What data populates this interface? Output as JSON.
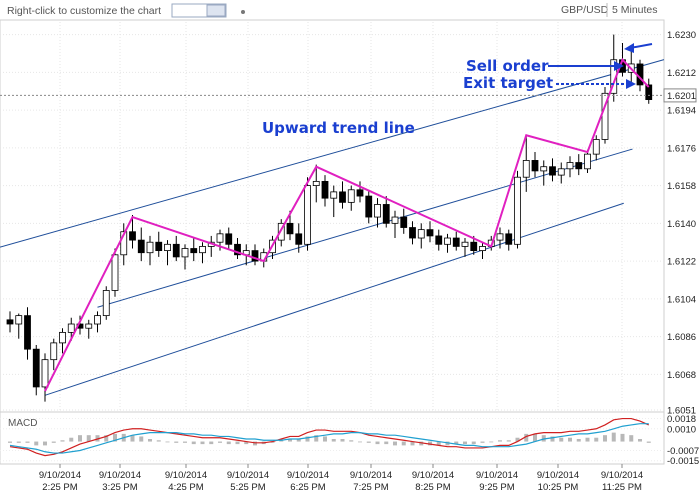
{
  "toolbar": {
    "customize_hint": "Right-click to customize the chart",
    "settings_icon": "gear-icon",
    "symbol": "GBP/USD",
    "timeframe": "5 Minutes"
  },
  "annotations": {
    "trend_line_label": "Upward trend line",
    "sell_order_label": "Sell order",
    "exit_target_label": "Exit target",
    "current_price_label": "1.6201"
  },
  "macd": {
    "label": "MACD",
    "ticks": [
      "0.0018",
      "0.0010",
      "-0.0007",
      "-0.0015"
    ]
  },
  "colors": {
    "candle_up": "#ffffff",
    "candle_down": "#000000",
    "channel": "#1f4e9a",
    "zigzag": "#e020c0",
    "annotation": "#1a3fd0",
    "macd_line": "#d02020",
    "signal_line": "#20a0d0"
  },
  "chart_data": {
    "type": "candlestick",
    "symbol": "GBP/USD",
    "timeframe": "5 Minutes",
    "y_ticks": [
      "1.6230",
      "1.6212",
      "1.6194",
      "1.6176",
      "1.6158",
      "1.6140",
      "1.6122",
      "1.6104",
      "1.6086",
      "1.6068",
      "1.6051"
    ],
    "ylim": [
      1.6051,
      1.6236
    ],
    "x_ticks": [
      {
        "date": "9/10/2014",
        "time": "2:25 PM"
      },
      {
        "date": "9/10/2014",
        "time": "3:25 PM"
      },
      {
        "date": "9/10/2014",
        "time": "4:25 PM"
      },
      {
        "date": "9/10/2014",
        "time": "5:25 PM"
      },
      {
        "date": "9/10/2014",
        "time": "6:25 PM"
      },
      {
        "date": "9/10/2014",
        "time": "7:25 PM"
      },
      {
        "date": "9/10/2014",
        "time": "8:25 PM"
      },
      {
        "date": "9/10/2014",
        "time": "9:25 PM"
      },
      {
        "date": "9/10/2014",
        "time": "10:25 PM"
      },
      {
        "date": "9/10/2014",
        "time": "11:25 PM"
      }
    ],
    "current_price": 1.6201,
    "zigzag": [
      {
        "bar": 4,
        "price": 1.606
      },
      {
        "bar": 14,
        "price": 1.6143
      },
      {
        "bar": 29,
        "price": 1.6122
      },
      {
        "bar": 35,
        "price": 1.6167
      },
      {
        "bar": 55,
        "price": 1.6129
      },
      {
        "bar": 59,
        "price": 1.6182
      },
      {
        "bar": 66,
        "price": 1.6174
      },
      {
        "bar": 70,
        "price": 1.6218
      },
      {
        "bar": 73,
        "price": 1.6205
      }
    ],
    "channel": {
      "upper": [
        {
          "bar": 0,
          "price": 1.613
        },
        {
          "bar": 73,
          "price": 1.6216
        }
      ],
      "middle": [
        {
          "bar": 10,
          "price": 1.61
        },
        {
          "bar": 70,
          "price": 1.6174
        }
      ],
      "lower": [
        {
          "bar": 4,
          "price": 1.6058
        },
        {
          "bar": 69,
          "price": 1.6148
        }
      ]
    },
    "candles": [
      {
        "o": 1.6094,
        "h": 1.6098,
        "l": 1.6088,
        "c": 1.6092
      },
      {
        "o": 1.6092,
        "h": 1.6097,
        "l": 1.6085,
        "c": 1.6096
      },
      {
        "o": 1.6096,
        "h": 1.61,
        "l": 1.6075,
        "c": 1.608
      },
      {
        "o": 1.608,
        "h": 1.6082,
        "l": 1.6058,
        "c": 1.6062
      },
      {
        "o": 1.6062,
        "h": 1.6078,
        "l": 1.6055,
        "c": 1.6075
      },
      {
        "o": 1.6075,
        "h": 1.6085,
        "l": 1.607,
        "c": 1.6083
      },
      {
        "o": 1.6083,
        "h": 1.609,
        "l": 1.6078,
        "c": 1.6088
      },
      {
        "o": 1.6088,
        "h": 1.6095,
        "l": 1.6084,
        "c": 1.6092
      },
      {
        "o": 1.6092,
        "h": 1.6096,
        "l": 1.6087,
        "c": 1.609
      },
      {
        "o": 1.609,
        "h": 1.6094,
        "l": 1.6085,
        "c": 1.6092
      },
      {
        "o": 1.6092,
        "h": 1.6098,
        "l": 1.6088,
        "c": 1.6096
      },
      {
        "o": 1.6096,
        "h": 1.611,
        "l": 1.6094,
        "c": 1.6108
      },
      {
        "o": 1.6108,
        "h": 1.6128,
        "l": 1.6105,
        "c": 1.6125
      },
      {
        "o": 1.6125,
        "h": 1.614,
        "l": 1.612,
        "c": 1.6136
      },
      {
        "o": 1.6136,
        "h": 1.6144,
        "l": 1.6128,
        "c": 1.6132
      },
      {
        "o": 1.6132,
        "h": 1.6138,
        "l": 1.6122,
        "c": 1.6126
      },
      {
        "o": 1.6126,
        "h": 1.6134,
        "l": 1.612,
        "c": 1.6131
      },
      {
        "o": 1.6131,
        "h": 1.6136,
        "l": 1.6124,
        "c": 1.6127
      },
      {
        "o": 1.6127,
        "h": 1.6132,
        "l": 1.612,
        "c": 1.613
      },
      {
        "o": 1.613,
        "h": 1.6134,
        "l": 1.6122,
        "c": 1.6124
      },
      {
        "o": 1.6124,
        "h": 1.613,
        "l": 1.6118,
        "c": 1.6128
      },
      {
        "o": 1.6128,
        "h": 1.6133,
        "l": 1.6122,
        "c": 1.6126
      },
      {
        "o": 1.6126,
        "h": 1.6131,
        "l": 1.6121,
        "c": 1.6129
      },
      {
        "o": 1.6129,
        "h": 1.6134,
        "l": 1.6124,
        "c": 1.6131
      },
      {
        "o": 1.6131,
        "h": 1.6137,
        "l": 1.6127,
        "c": 1.6135
      },
      {
        "o": 1.6135,
        "h": 1.6138,
        "l": 1.6128,
        "c": 1.613
      },
      {
        "o": 1.613,
        "h": 1.6133,
        "l": 1.6123,
        "c": 1.6125
      },
      {
        "o": 1.6125,
        "h": 1.613,
        "l": 1.612,
        "c": 1.6127
      },
      {
        "o": 1.6127,
        "h": 1.613,
        "l": 1.612,
        "c": 1.6122
      },
      {
        "o": 1.6122,
        "h": 1.6128,
        "l": 1.6119,
        "c": 1.6126
      },
      {
        "o": 1.6126,
        "h": 1.6134,
        "l": 1.6123,
        "c": 1.6132
      },
      {
        "o": 1.6132,
        "h": 1.6142,
        "l": 1.6129,
        "c": 1.614
      },
      {
        "o": 1.614,
        "h": 1.6146,
        "l": 1.6132,
        "c": 1.6135
      },
      {
        "o": 1.6135,
        "h": 1.614,
        "l": 1.6126,
        "c": 1.613
      },
      {
        "o": 1.613,
        "h": 1.6162,
        "l": 1.6127,
        "c": 1.6158
      },
      {
        "o": 1.6158,
        "h": 1.6168,
        "l": 1.615,
        "c": 1.616
      },
      {
        "o": 1.616,
        "h": 1.6163,
        "l": 1.6148,
        "c": 1.6152
      },
      {
        "o": 1.6152,
        "h": 1.6158,
        "l": 1.6143,
        "c": 1.6155
      },
      {
        "o": 1.6155,
        "h": 1.616,
        "l": 1.6147,
        "c": 1.615
      },
      {
        "o": 1.615,
        "h": 1.6158,
        "l": 1.6146,
        "c": 1.6156
      },
      {
        "o": 1.6156,
        "h": 1.616,
        "l": 1.615,
        "c": 1.6153
      },
      {
        "o": 1.6153,
        "h": 1.6156,
        "l": 1.614,
        "c": 1.6143
      },
      {
        "o": 1.6143,
        "h": 1.6152,
        "l": 1.6138,
        "c": 1.6149
      },
      {
        "o": 1.6149,
        "h": 1.6153,
        "l": 1.6138,
        "c": 1.614
      },
      {
        "o": 1.614,
        "h": 1.6146,
        "l": 1.6133,
        "c": 1.6143
      },
      {
        "o": 1.6143,
        "h": 1.6147,
        "l": 1.6135,
        "c": 1.6138
      },
      {
        "o": 1.6138,
        "h": 1.6141,
        "l": 1.613,
        "c": 1.6133
      },
      {
        "o": 1.6133,
        "h": 1.614,
        "l": 1.6128,
        "c": 1.6137
      },
      {
        "o": 1.6137,
        "h": 1.6141,
        "l": 1.6131,
        "c": 1.6134
      },
      {
        "o": 1.6134,
        "h": 1.6137,
        "l": 1.6127,
        "c": 1.613
      },
      {
        "o": 1.613,
        "h": 1.6135,
        "l": 1.6126,
        "c": 1.6133
      },
      {
        "o": 1.6133,
        "h": 1.6136,
        "l": 1.6127,
        "c": 1.6129
      },
      {
        "o": 1.6129,
        "h": 1.6133,
        "l": 1.6124,
        "c": 1.6131
      },
      {
        "o": 1.6131,
        "h": 1.6134,
        "l": 1.6125,
        "c": 1.6127
      },
      {
        "o": 1.6127,
        "h": 1.6131,
        "l": 1.6123,
        "c": 1.6129
      },
      {
        "o": 1.6129,
        "h": 1.6134,
        "l": 1.6127,
        "c": 1.6132
      },
      {
        "o": 1.6132,
        "h": 1.6138,
        "l": 1.6128,
        "c": 1.6135
      },
      {
        "o": 1.6135,
        "h": 1.6137,
        "l": 1.6127,
        "c": 1.613
      },
      {
        "o": 1.613,
        "h": 1.6165,
        "l": 1.6128,
        "c": 1.6162
      },
      {
        "o": 1.6162,
        "h": 1.6182,
        "l": 1.6155,
        "c": 1.617
      },
      {
        "o": 1.617,
        "h": 1.6174,
        "l": 1.6162,
        "c": 1.6165
      },
      {
        "o": 1.6165,
        "h": 1.617,
        "l": 1.6158,
        "c": 1.6167
      },
      {
        "o": 1.6167,
        "h": 1.6171,
        "l": 1.616,
        "c": 1.6163
      },
      {
        "o": 1.6163,
        "h": 1.6169,
        "l": 1.6159,
        "c": 1.6166
      },
      {
        "o": 1.6166,
        "h": 1.6172,
        "l": 1.6162,
        "c": 1.6169
      },
      {
        "o": 1.6169,
        "h": 1.6173,
        "l": 1.6163,
        "c": 1.6166
      },
      {
        "o": 1.6166,
        "h": 1.6175,
        "l": 1.6164,
        "c": 1.6173
      },
      {
        "o": 1.6173,
        "h": 1.6182,
        "l": 1.617,
        "c": 1.618
      },
      {
        "o": 1.618,
        "h": 1.6205,
        "l": 1.6178,
        "c": 1.6202
      },
      {
        "o": 1.6202,
        "h": 1.623,
        "l": 1.6198,
        "c": 1.6218
      },
      {
        "o": 1.6218,
        "h": 1.6226,
        "l": 1.621,
        "c": 1.6212
      },
      {
        "o": 1.6212,
        "h": 1.6222,
        "l": 1.6206,
        "c": 1.6216
      },
      {
        "o": 1.6216,
        "h": 1.6218,
        "l": 1.6203,
        "c": 1.6206
      },
      {
        "o": 1.6206,
        "h": 1.6209,
        "l": 1.6197,
        "c": 1.6199
      }
    ],
    "macd_series": [
      {
        "name": "MACD",
        "values": [
          -0.0004,
          -0.0005,
          -0.0006,
          -0.0009,
          -0.0011,
          -0.001,
          -0.0008,
          -0.0005,
          -0.0002,
          0.0,
          0.0002,
          0.0004,
          0.0007,
          0.0009,
          0.001,
          0.001,
          0.0009,
          0.0008,
          0.0007,
          0.0006,
          0.0005,
          0.0004,
          0.0003,
          0.0003,
          0.0003,
          0.0002,
          0.0001,
          0.0,
          -0.0001,
          -0.0001,
          0.0,
          0.0002,
          0.0004,
          0.0004,
          0.0007,
          0.0009,
          0.0009,
          0.0008,
          0.0008,
          0.0008,
          0.0007,
          0.0005,
          0.0004,
          0.0003,
          0.0002,
          0.0001,
          0.0,
          -0.0001,
          -0.0002,
          -0.0003,
          -0.0004,
          -0.0004,
          -0.0005,
          -0.0005,
          -0.0005,
          -0.0004,
          -0.0003,
          -0.0003,
          0.0,
          0.0004,
          0.0006,
          0.0007,
          0.0007,
          0.0007,
          0.0008,
          0.0008,
          0.0009,
          0.001,
          0.0013,
          0.0017,
          0.0018,
          0.0018,
          0.0016,
          0.0013
        ]
      },
      {
        "name": "Signal",
        "values": [
          -0.0003,
          -0.0004,
          -0.0005,
          -0.0006,
          -0.0008,
          -0.0009,
          -0.0009,
          -0.0008,
          -0.0007,
          -0.0005,
          -0.0003,
          -0.0001,
          0.0001,
          0.0003,
          0.0005,
          0.0006,
          0.0007,
          0.0007,
          0.0007,
          0.0007,
          0.0006,
          0.0006,
          0.0005,
          0.0005,
          0.0004,
          0.0004,
          0.0003,
          0.0002,
          0.0002,
          0.0001,
          0.0001,
          0.0001,
          0.0002,
          0.0002,
          0.0003,
          0.0004,
          0.0005,
          0.0006,
          0.0006,
          0.0007,
          0.0007,
          0.0006,
          0.0006,
          0.0005,
          0.0005,
          0.0004,
          0.0003,
          0.0002,
          0.0001,
          0.0,
          -0.0001,
          -0.0002,
          -0.0003,
          -0.0003,
          -0.0004,
          -0.0004,
          -0.0004,
          -0.0004,
          -0.0003,
          -0.0002,
          0.0,
          0.0002,
          0.0003,
          0.0004,
          0.0005,
          0.0006,
          0.0006,
          0.0007,
          0.0008,
          0.001,
          0.0012,
          0.0013,
          0.0014,
          0.0014
        ]
      }
    ]
  }
}
